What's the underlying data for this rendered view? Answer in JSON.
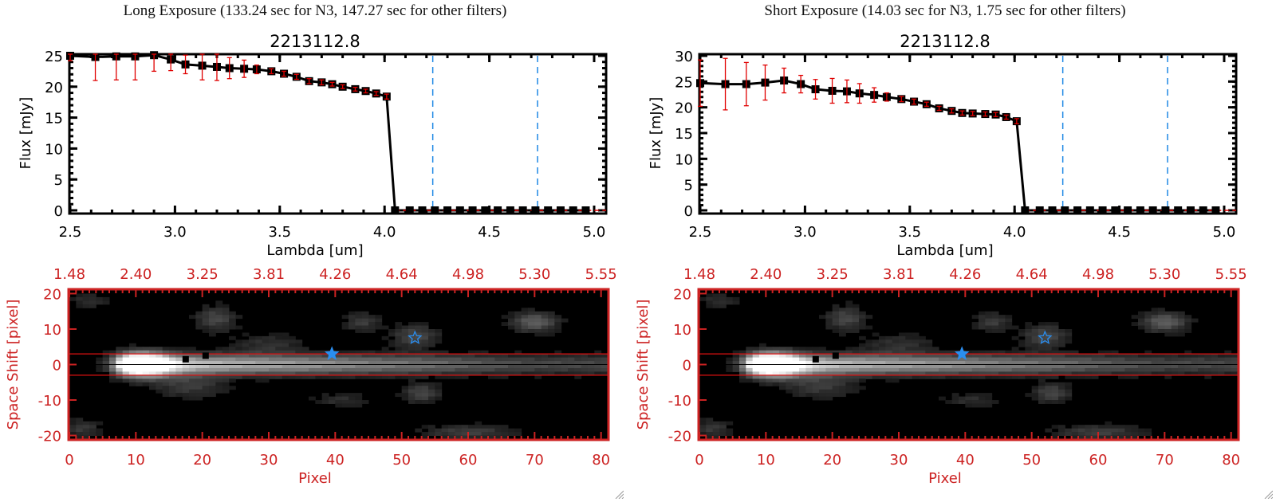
{
  "chart_data": [
    {
      "type": "line",
      "panel": "left",
      "exposure_title": "Long Exposure (133.24 sec for N3, 147.27 sec for other filters)",
      "title": "2213112.8",
      "xlabel": "Lambda [um]",
      "ylabel": "Flux [mJy]",
      "xlim": [
        2.5,
        5.0
      ],
      "ylim": [
        0,
        25
      ],
      "xticks": [
        "2.5",
        "3.0",
        "3.5",
        "4.0",
        "4.5",
        "5.0"
      ],
      "xtick_values": [
        2.5,
        3.0,
        3.5,
        4.0,
        4.5,
        5.0
      ],
      "yticks": [
        "0",
        "5",
        "10",
        "15",
        "20",
        "25"
      ],
      "ytick_values": [
        0,
        5,
        10,
        15,
        20,
        25
      ],
      "vlines": [
        4.23,
        4.73
      ],
      "series": [
        {
          "name": "flux",
          "x": [
            2.5,
            2.62,
            2.72,
            2.81,
            2.9,
            2.98,
            3.05,
            3.13,
            3.2,
            3.26,
            3.33,
            3.39,
            3.46,
            3.52,
            3.58,
            3.64,
            3.7,
            3.75,
            3.8,
            3.86,
            3.91,
            3.96,
            4.01,
            4.05,
            4.12,
            4.18,
            4.24,
            4.3,
            4.36,
            4.42,
            4.48,
            4.54,
            4.6,
            4.66,
            4.72,
            4.78,
            4.84,
            4.9,
            4.96
          ],
          "y": [
            25.0,
            24.8,
            24.9,
            24.9,
            25.1,
            24.4,
            23.6,
            23.4,
            23.2,
            23.0,
            22.9,
            22.8,
            22.5,
            22.1,
            21.6,
            20.9,
            20.7,
            20.4,
            20.0,
            19.6,
            19.3,
            18.9,
            18.4,
            0,
            0,
            0,
            0,
            0,
            0,
            0,
            0,
            0,
            0,
            0,
            0,
            0,
            0,
            0,
            0
          ],
          "yerr": [
            0.8,
            3.8,
            3.8,
            3.8,
            2.6,
            1.8,
            1.5,
            2.3,
            2.2,
            1.7,
            1.4,
            0.7,
            0.4,
            0.4,
            0.4,
            0.4,
            0.4,
            0.3,
            0.3,
            0.3,
            0.3,
            0.3,
            0.4,
            0,
            0,
            0,
            0,
            0,
            0,
            0,
            0,
            0,
            0,
            0,
            0,
            0,
            0,
            0,
            0
          ]
        }
      ]
    },
    {
      "type": "heatmap",
      "panel": "left",
      "xlabel": "Pixel",
      "ylabel": "Space Shift [pixel]",
      "xlim": [
        0,
        81
      ],
      "ylim": [
        -21,
        21
      ],
      "xticks": [
        "0",
        "10",
        "20",
        "30",
        "40",
        "50",
        "60",
        "70",
        "80"
      ],
      "xtick_values": [
        0,
        10,
        20,
        30,
        40,
        50,
        60,
        70,
        80
      ],
      "yticks": [
        "20",
        "10",
        "0",
        "-10",
        "-20"
      ],
      "ytick_values": [
        20,
        10,
        0,
        -10,
        -20
      ],
      "top_axis_ticks": [
        "1.48",
        "2.40",
        "3.25",
        "3.81",
        "4.26",
        "4.64",
        "4.98",
        "5.30",
        "5.55"
      ],
      "aperture_lines": [
        3,
        -3
      ],
      "center_line": 0,
      "markers": [
        {
          "type": "square",
          "x": 17.5,
          "y": 1.5
        },
        {
          "type": "square",
          "x": 20.5,
          "y": 2.5
        },
        {
          "type": "star-filled",
          "x": 39.5,
          "y": 3
        },
        {
          "type": "star-open",
          "x": 52,
          "y": 7.5
        }
      ]
    },
    {
      "type": "line",
      "panel": "right",
      "exposure_title": "Short Exposure (14.03 sec for N3, 1.75 sec for other filters)",
      "title": "2213112.8",
      "xlabel": "Lambda [um]",
      "ylabel": "Flux [mJy]",
      "xlim": [
        2.5,
        5.0
      ],
      "ylim": [
        0,
        30
      ],
      "xticks": [
        "2.5",
        "3.0",
        "3.5",
        "4.0",
        "4.5",
        "5.0"
      ],
      "xtick_values": [
        2.5,
        3.0,
        3.5,
        4.0,
        4.5,
        5.0
      ],
      "yticks": [
        "0",
        "5",
        "10",
        "15",
        "20",
        "25",
        "30"
      ],
      "ytick_values": [
        0,
        5,
        10,
        15,
        20,
        25,
        30
      ],
      "vlines": [
        4.23,
        4.73
      ],
      "series": [
        {
          "name": "flux",
          "x": [
            2.5,
            2.62,
            2.72,
            2.81,
            2.9,
            2.98,
            3.05,
            3.13,
            3.2,
            3.26,
            3.33,
            3.39,
            3.46,
            3.52,
            3.58,
            3.64,
            3.7,
            3.75,
            3.8,
            3.86,
            3.91,
            3.96,
            4.01,
            4.05,
            4.12,
            4.18,
            4.24,
            4.3,
            4.36,
            4.42,
            4.48,
            4.54,
            4.6,
            4.66,
            4.72,
            4.78,
            4.84,
            4.9,
            4.96
          ],
          "y": [
            24.7,
            24.5,
            24.5,
            24.8,
            25.2,
            24.5,
            23.5,
            23.2,
            23.1,
            22.7,
            22.4,
            22.0,
            21.6,
            21.1,
            20.6,
            19.8,
            19.3,
            18.9,
            18.8,
            18.7,
            18.6,
            18.1,
            17.3,
            0,
            0,
            0,
            0,
            0,
            0,
            0,
            0,
            0,
            0,
            0,
            0,
            0,
            0,
            0,
            0
          ],
          "yerr": [
            4.5,
            5.0,
            4.2,
            3.4,
            2.4,
            1.7,
            1.9,
            2.4,
            2.2,
            1.9,
            1.4,
            0.8,
            0.5,
            0.5,
            0.4,
            0.4,
            0.4,
            0.4,
            0.4,
            0.4,
            0.4,
            0.4,
            0.5,
            0,
            0,
            0,
            0,
            0,
            0,
            0,
            0,
            0,
            0,
            0,
            0,
            0,
            0,
            0,
            0
          ]
        }
      ]
    },
    {
      "type": "heatmap",
      "panel": "right",
      "xlabel": "Pixel",
      "ylabel": "Space Shift [pixel]",
      "xlim": [
        0,
        81
      ],
      "ylim": [
        -21,
        21
      ],
      "xticks": [
        "0",
        "10",
        "20",
        "30",
        "40",
        "50",
        "60",
        "70",
        "80"
      ],
      "xtick_values": [
        0,
        10,
        20,
        30,
        40,
        50,
        60,
        70,
        80
      ],
      "yticks": [
        "20",
        "10",
        "0",
        "-10",
        "-20"
      ],
      "ytick_values": [
        20,
        10,
        0,
        -10,
        -20
      ],
      "top_axis_ticks": [
        "1.48",
        "2.40",
        "3.25",
        "3.81",
        "4.26",
        "4.64",
        "4.98",
        "5.30",
        "5.55"
      ],
      "aperture_lines": [
        3,
        -3
      ],
      "center_line": 0,
      "markers": [
        {
          "type": "square",
          "x": 17.5,
          "y": 1.5
        },
        {
          "type": "square",
          "x": 20.5,
          "y": 2.5
        },
        {
          "type": "star-filled",
          "x": 39.5,
          "y": 3
        },
        {
          "type": "star-open",
          "x": 52,
          "y": 7.5
        }
      ]
    }
  ],
  "colors": {
    "axis": "#000000",
    "errorbar": "#e00000",
    "vline": "#1e88e5",
    "image_axis": "#cc2222",
    "aperture": "#dd1111",
    "star": "#2a8ef0"
  },
  "window": {
    "resize_grip_icon": "resize-grip-icon"
  }
}
